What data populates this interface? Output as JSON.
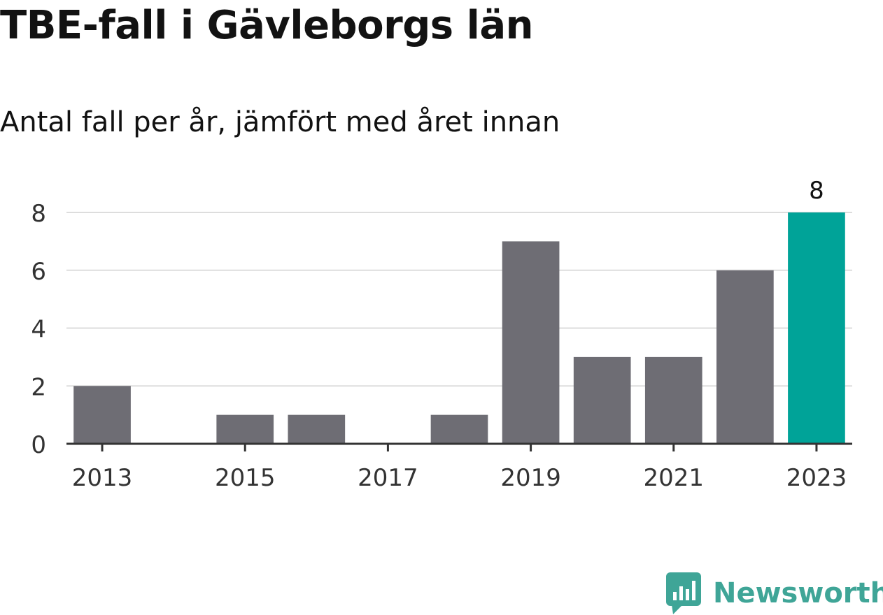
{
  "title": "TBE-fall i Gävleborgs län",
  "subtitle": "Antal fall per år, jämfört med året innan",
  "brand": {
    "name": "Newsworthy",
    "icon": "newsworthy-logo-icon",
    "color": "#3fa597"
  },
  "colors": {
    "bar": "#6e6d74",
    "highlight": "#00a398",
    "grid": "#dddddd",
    "axis": "#333333",
    "text": "#333333"
  },
  "chart_data": {
    "type": "bar",
    "categories": [
      "2013",
      "2014",
      "2015",
      "2016",
      "2017",
      "2018",
      "2019",
      "2020",
      "2021",
      "2022",
      "2023"
    ],
    "values": [
      2,
      0,
      1,
      1,
      0,
      1,
      7,
      3,
      3,
      6,
      8
    ],
    "x_tick_labels": [
      "2013",
      "2015",
      "2017",
      "2019",
      "2021",
      "2023"
    ],
    "y_ticks": [
      0,
      2,
      4,
      6,
      8
    ],
    "ylim": [
      0,
      8
    ],
    "highlight_category": "2023",
    "data_labels": [
      {
        "category": "2023",
        "text": "8"
      }
    ],
    "grid": true,
    "legend": "none",
    "xlabel": "",
    "ylabel": ""
  }
}
